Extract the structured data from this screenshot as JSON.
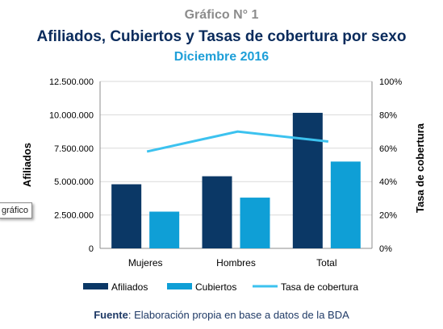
{
  "header": {
    "number": "Gráfico N° 1",
    "title": "Afiliados, Cubiertos y Tasas de cobertura por sexo",
    "subtitle": "Diciembre 2016"
  },
  "tooltip": {
    "text": "gráfico"
  },
  "source": {
    "label": "Fuente",
    "text": ": Elaboración propia en base a datos de la BDA"
  },
  "chart_data": {
    "type": "bar",
    "categories": [
      "Mujeres",
      "Hombres",
      "Total"
    ],
    "series": [
      {
        "name": "Afiliados",
        "kind": "bar",
        "axis": "left",
        "color": "#0b3866",
        "values": [
          4800000,
          5400000,
          10150000
        ]
      },
      {
        "name": "Cubiertos",
        "kind": "bar",
        "axis": "left",
        "color": "#0f9fd6",
        "values": [
          2750000,
          3800000,
          6500000
        ]
      },
      {
        "name": "Tasa de cobertura",
        "kind": "line",
        "axis": "right",
        "color": "#3cc2ef",
        "values": [
          58,
          70,
          64
        ]
      }
    ],
    "ylabel": "Afiliados",
    "y2label": "Tasa de cobertura",
    "ylim": [
      0,
      12500000
    ],
    "yticks": [
      0,
      2500000,
      5000000,
      7500000,
      10000000,
      12500000
    ],
    "ytick_labels": [
      "0",
      "2.500.000",
      "5.000.000",
      "7.500.000",
      "10.000.000",
      "12.500.000"
    ],
    "y2lim": [
      0,
      100
    ],
    "y2ticks": [
      0,
      20,
      40,
      60,
      80,
      100
    ],
    "y2tick_labels": [
      "0%",
      "20%",
      "40%",
      "60%",
      "80%",
      "100%"
    ],
    "grid": true,
    "legend_position": "bottom"
  }
}
